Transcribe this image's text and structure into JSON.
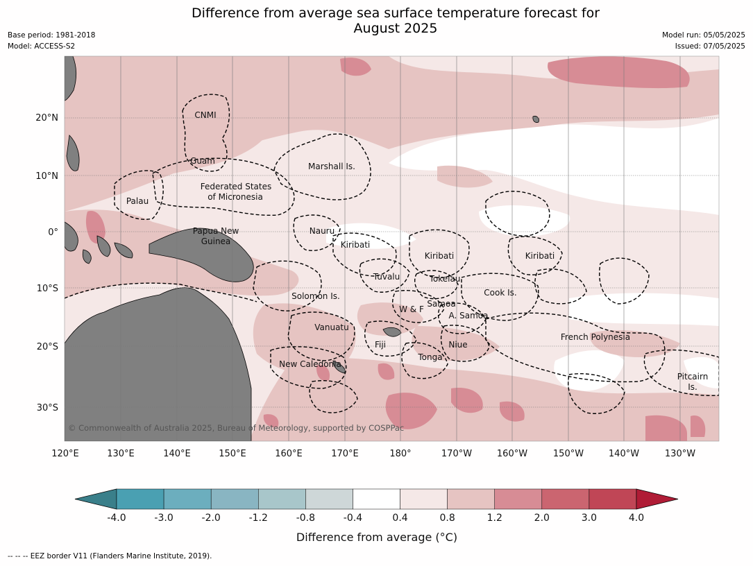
{
  "header": {
    "title_line1": "Difference from average sea surface temperature forecast for",
    "title_line2": "August 2025",
    "base_period": "Base period: 1981-2018",
    "model": "Model: ACCESS-S2",
    "model_run": "Model run: 05/05/2025",
    "issued": "Issued: 07/05/2025"
  },
  "map": {
    "lon_ticks": [
      "120°E",
      "130°E",
      "140°E",
      "150°E",
      "160°E",
      "170°E",
      "180°",
      "170°W",
      "160°W",
      "150°W",
      "140°W",
      "130°W"
    ],
    "lat_ticks": [
      "20°N",
      "10°N",
      "0°",
      "10°S",
      "20°S",
      "30°S"
    ],
    "copyright": "© Commonwealth of Australia 2025, Bureau of Meteorology, supported by COSPPac",
    "regions": [
      "CNMI",
      "Guam",
      "Marshall Is.",
      "Palau",
      "Federated States",
      "of Micronesia",
      "Nauru",
      "Papua New",
      "Guinea",
      "Kiribati",
      "Kiribati",
      "Kiribati",
      "Tuvalu",
      "Tokelau",
      "Solomon Is.",
      "Samoa",
      "W & F",
      "A. Samoa",
      "Cook Is.",
      "Vanuatu",
      "Fiji",
      "Niue",
      "French Polynesia",
      "Tonga",
      "New Caledonia",
      "Pitcairn",
      "Is."
    ],
    "colors": {
      "land": "#808080",
      "ocean_light": "#f5e8e7",
      "ocean_mid": "#e6c4c2",
      "ocean_warm": "#d78c95"
    }
  },
  "colorbar": {
    "title": "Difference from average (°C)",
    "ticks": [
      "-4.0",
      "-3.0",
      "-2.0",
      "-1.2",
      "-0.8",
      "-0.4",
      "0.4",
      "0.8",
      "1.2",
      "2.0",
      "3.0",
      "4.0"
    ],
    "colors": [
      "#3a7f8a",
      "#4aa0b2",
      "#6caebe",
      "#89b5c2",
      "#a8c6ca",
      "#ced7d8",
      "#ffffff",
      "#f5e8e7",
      "#e6c4c2",
      "#d78c95",
      "#cb6570",
      "#c04656",
      "#b01c36"
    ]
  },
  "footnote": "--  --  -- EEZ border V11 (Flanders Marine Institute, 2019)."
}
